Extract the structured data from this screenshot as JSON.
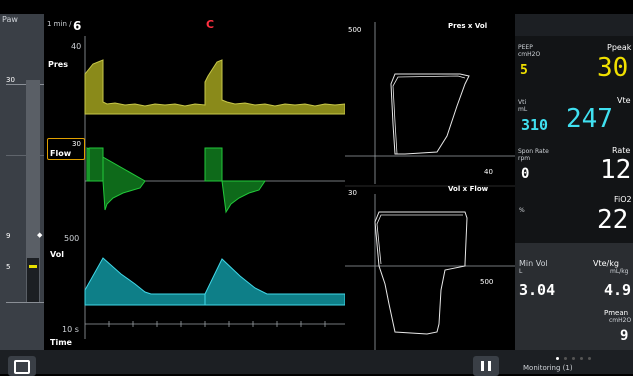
{
  "paw_label": "Paw",
  "paw_scale": {
    "top": "30",
    "mid": "9",
    "low": "5"
  },
  "diamond_glyph": "◆",
  "sweep": {
    "unit": "1 min /",
    "value": "6",
    "alert_letter": "C"
  },
  "waveforms": {
    "pres": {
      "label": "Pres",
      "max": "40"
    },
    "flow": {
      "label": "Flow",
      "max": "30"
    },
    "vol": {
      "label": "Vol",
      "max": "500"
    },
    "time": {
      "label": "Time",
      "span": "10 s"
    }
  },
  "loops": {
    "pv": {
      "title": "Pres x Vol",
      "ymax": "500",
      "xmax": "40"
    },
    "vf": {
      "title": "Vol x Flow",
      "ymax": "30",
      "xmax": "500"
    }
  },
  "parameters": [
    {
      "label": "PEEP",
      "unit": "cmH2O",
      "value": "5",
      "color": "#f0e000"
    },
    {
      "label": "Ppeak",
      "unit": "",
      "value": "30",
      "color": "#f0e000"
    },
    {
      "label": "Vti",
      "unit": "mL",
      "value": "310",
      "color": "#40e0f0"
    },
    {
      "label": "Vte",
      "unit": "",
      "value": "247",
      "color": "#40e0f0"
    },
    {
      "label": "Spon Rate",
      "unit": "rpm",
      "value": "0",
      "color": "#ffffff"
    },
    {
      "label": "Rate",
      "unit": "",
      "value": "12",
      "color": "#ffffff"
    },
    {
      "label": "FiO2",
      "unit": "%",
      "value": "22",
      "color": "#ffffff"
    },
    {
      "label": "Min Vol",
      "unit": "L",
      "value": "3.04",
      "color": "#ffffff"
    },
    {
      "label": "Vte/kg",
      "unit": "mL/kg",
      "value": "4.9",
      "color": "#ffffff"
    },
    {
      "label": "Pmean",
      "unit": "cmH2O",
      "value": "9",
      "color": "#ffffff"
    }
  ],
  "monitoring_label": "Monitoring (1)",
  "colors": {
    "pressure": "#8a8a1a",
    "flow": "#0e6a1a",
    "volume": "#0e7f88",
    "selected_border": "#e0a000"
  }
}
